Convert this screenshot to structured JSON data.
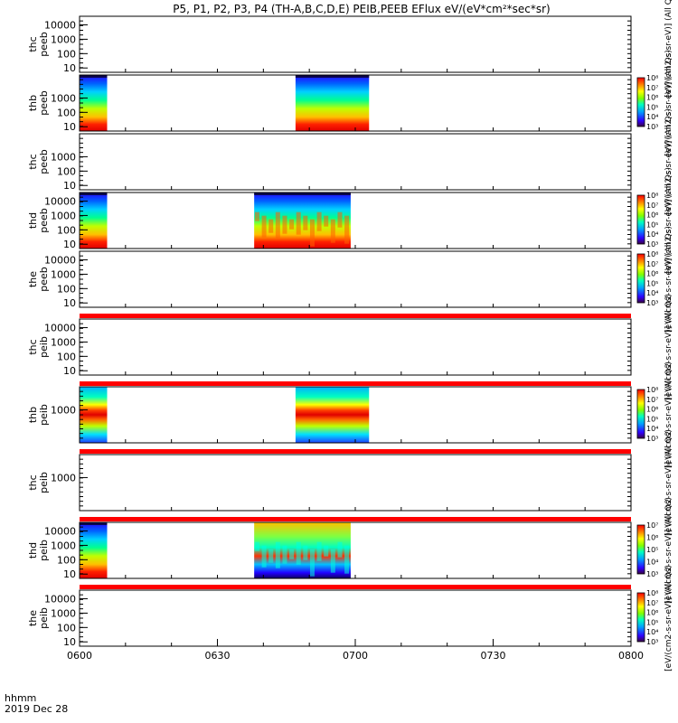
{
  "title": "P5, P1, P2, P3, P4 (TH-A,B,C,D,E) PEIB,PEEB EFlux eV/(eV*cm²*sec*sr)",
  "footer": {
    "axis_label": "hhmm",
    "date": "2019 Dec 28"
  },
  "chart_data": {
    "type": "heatmap",
    "x": {
      "unit": "hhmm",
      "range": [
        "0600",
        "0800"
      ],
      "tick_labels": [
        "0600",
        "0630",
        "0700",
        "0730",
        "0800"
      ]
    },
    "panels": [
      {
        "probe": "thc",
        "product": "peeb",
        "y_ticks": [
          "10",
          "100",
          "1000",
          "10000"
        ],
        "colorbar": false,
        "colorbar_label": "[eV/(cm2-s-sr-eV)] (All Qs)",
        "data_blocks": []
      },
      {
        "probe": "thb",
        "product": "peeb",
        "y_ticks": [
          "10",
          "100",
          "1000"
        ],
        "colorbar": true,
        "colorbar_ticks": [
          "10³",
          "10⁴",
          "10⁵",
          "10⁶",
          "10⁷",
          "10⁸"
        ],
        "colorbar_label": "[eV/(cm2-s-sr-eV)] (All Qs)",
        "data_blocks": [
          {
            "start": "0600",
            "end": "0606",
            "style": "smooth"
          },
          {
            "start": "0647",
            "end": "0703",
            "style": "smooth"
          }
        ]
      },
      {
        "probe": "thc",
        "product": "peeb",
        "y_ticks": [
          "10",
          "100",
          "1000"
        ],
        "colorbar": false,
        "colorbar_label": "[eV/(cm2-s-sr-eV)] (All Qs)",
        "data_blocks": []
      },
      {
        "probe": "thd",
        "product": "peeb",
        "y_ticks": [
          "10",
          "100",
          "1000",
          "10000"
        ],
        "colorbar": true,
        "colorbar_ticks": [
          "10³",
          "10⁴",
          "10⁵",
          "10⁶",
          "10⁷",
          "10⁸"
        ],
        "colorbar_label": "[eV/(cm2-s-sr-eV)] (All Qs)",
        "data_blocks": [
          {
            "start": "0600",
            "end": "0606",
            "style": "smooth"
          },
          {
            "start": "0638",
            "end": "0659",
            "style": "structured"
          }
        ]
      },
      {
        "probe": "the",
        "product": "peeb",
        "y_ticks": [
          "10",
          "100",
          "1000",
          "10000"
        ],
        "colorbar": true,
        "colorbar_ticks": [
          "10³",
          "10⁴",
          "10⁵",
          "10⁶",
          "10⁷",
          "10⁸"
        ],
        "colorbar_label": "[eV/(cm2-s-sr-eV)] (All Qs)",
        "data_blocks": []
      },
      {
        "probe": "thc",
        "product": "peib",
        "y_ticks": [
          "10",
          "100",
          "1000",
          "10000"
        ],
        "colorbar": false,
        "colorbar_label": "[eV/(cm2-s-sr-eV)] (All Qs)",
        "data_blocks": []
      },
      {
        "probe": "thb",
        "product": "peib",
        "y_ticks": [
          "1000"
        ],
        "colorbar": true,
        "colorbar_ticks": [
          "10³",
          "10⁴",
          "10⁵",
          "10⁶",
          "10⁷",
          "10⁸"
        ],
        "colorbar_label": "[eV/(cm2-s-sr-eV)] (All Qs)",
        "data_blocks": [
          {
            "start": "0600",
            "end": "0606",
            "style": "band"
          },
          {
            "start": "0647",
            "end": "0703",
            "style": "band"
          }
        ]
      },
      {
        "probe": "thc",
        "product": "peib",
        "y_ticks": [
          "1000"
        ],
        "colorbar": false,
        "colorbar_label": "[eV/(cm2-s-sr-eV)] (All Qs)",
        "data_blocks": []
      },
      {
        "probe": "thd",
        "product": "peib",
        "y_ticks": [
          "10",
          "100",
          "1000",
          "10000"
        ],
        "colorbar": true,
        "colorbar_ticks": [
          "10³",
          "10⁴",
          "10⁵",
          "10⁶",
          "10⁷"
        ],
        "colorbar_label": "[eV/(cm2-s-sr-eV)] (All Qs)",
        "data_blocks": [
          {
            "start": "0600",
            "end": "0606",
            "style": "smooth"
          },
          {
            "start": "0638",
            "end": "0659",
            "style": "turbulent"
          }
        ]
      },
      {
        "probe": "the",
        "product": "peib",
        "y_ticks": [
          "10",
          "100",
          "1000",
          "10000"
        ],
        "colorbar": true,
        "colorbar_ticks": [
          "10³",
          "10⁴",
          "10⁵",
          "10⁶",
          "10⁷",
          "10⁸"
        ],
        "colorbar_label": "[eV/(cm2-s-sr-eV)] (All Qs)",
        "data_blocks": []
      }
    ],
    "red_separator_bands": true
  }
}
